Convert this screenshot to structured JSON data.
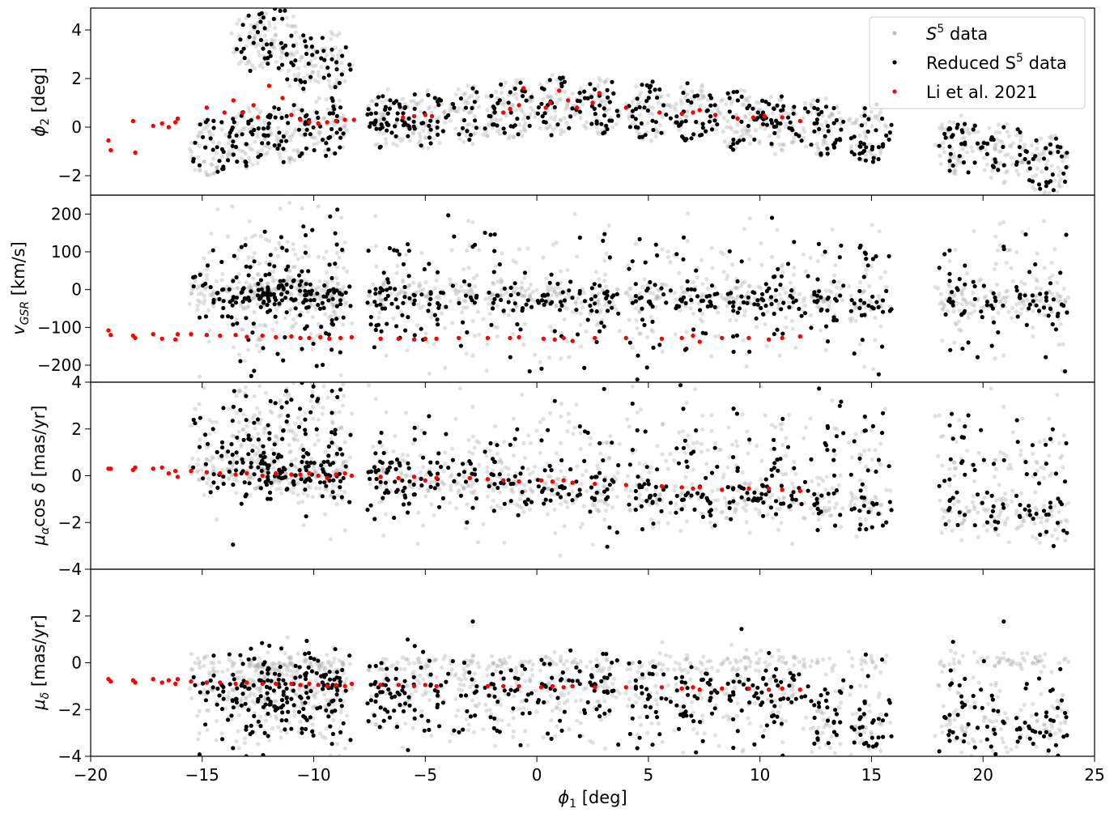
{
  "chart_data": {
    "type": "scatter",
    "xlabel": "ϕ1 [deg]",
    "xlim": [
      -20,
      25
    ],
    "xticks": [
      -20,
      -15,
      -10,
      -5,
      0,
      5,
      10,
      15,
      20,
      25
    ],
    "xtick_labels": [
      "−20",
      "−15",
      "−10",
      "−5",
      "0",
      "5",
      "10",
      "15",
      "20",
      "25"
    ],
    "legend": {
      "placement": "top-right",
      "entries": [
        {
          "label_base": "S",
          "label_sup": "5",
          "label_rest": " data",
          "color": "#bdbdbd"
        },
        {
          "label_base": "Reduced S",
          "label_sup": "5",
          "label_rest": " data",
          "color": "#000000"
        },
        {
          "label_base": "Li et al. 2021",
          "label_sup": "",
          "label_rest": "",
          "color": "#ff0000"
        }
      ]
    },
    "colors": {
      "s5": "#a8a8a8",
      "reduced": "#000000",
      "li": "#ff0000"
    },
    "panels": [
      {
        "id": "phi2",
        "ylabel": "ϕ2 [deg]",
        "ylim": [
          -2.8,
          4.9
        ],
        "yticks": [
          -2,
          0,
          2,
          4
        ],
        "ytick_labels": [
          "−2",
          "0",
          "2",
          "4"
        ],
        "li": [
          [
            -19.2,
            -0.55
          ],
          [
            -19.1,
            -0.95
          ],
          [
            -18.1,
            0.25
          ],
          [
            -18.0,
            -1.05
          ],
          [
            -17.2,
            0.05
          ],
          [
            -16.8,
            0.15
          ],
          [
            -16.5,
            0.0
          ],
          [
            -16.2,
            0.2
          ],
          [
            -16.1,
            0.35
          ],
          [
            -14.8,
            0.8
          ],
          [
            -14.0,
            0.6
          ],
          [
            -13.6,
            1.1
          ],
          [
            -13.2,
            0.6
          ],
          [
            -12.7,
            0.9
          ],
          [
            -12.5,
            0.4
          ],
          [
            -12.0,
            1.7
          ],
          [
            -11.4,
            1.2
          ],
          [
            -11.0,
            0.5
          ],
          [
            -10.6,
            0.3
          ],
          [
            -10.2,
            0.2
          ],
          [
            -9.8,
            0.15
          ],
          [
            -9.4,
            0.2
          ],
          [
            -9.0,
            0.25
          ],
          [
            -8.6,
            0.3
          ],
          [
            -8.2,
            0.3
          ],
          [
            -6.0,
            0.4
          ],
          [
            -5.5,
            0.45
          ],
          [
            -5.0,
            0.5
          ],
          [
            -4.7,
            0.45
          ],
          [
            -1.5,
            0.6
          ],
          [
            -1.2,
            0.75
          ],
          [
            -0.8,
            0.9
          ],
          [
            -0.6,
            1.6
          ],
          [
            0.4,
            0.8
          ],
          [
            0.6,
            1.0
          ],
          [
            1.0,
            1.5
          ],
          [
            1.4,
            1.1
          ],
          [
            1.8,
            0.8
          ],
          [
            2.5,
            1.0
          ],
          [
            2.8,
            1.4
          ],
          [
            4.0,
            0.8
          ],
          [
            5.5,
            0.6
          ],
          [
            6.5,
            0.55
          ],
          [
            7.0,
            0.6
          ],
          [
            7.3,
            0.7
          ],
          [
            8.0,
            0.5
          ],
          [
            9.0,
            0.35
          ],
          [
            9.7,
            0.4
          ],
          [
            10.2,
            0.45
          ],
          [
            11.0,
            0.4
          ],
          [
            11.8,
            0.25
          ]
        ]
      },
      {
        "id": "vgsr",
        "ylabel": "vGSR [km/s]",
        "ylim": [
          -245,
          250
        ],
        "yticks": [
          -200,
          -100,
          0,
          100,
          200
        ],
        "ytick_labels": [
          "−200",
          "−100",
          "0",
          "100",
          "200"
        ],
        "li": [
          [
            -19.2,
            -108
          ],
          [
            -19.1,
            -120
          ],
          [
            -18.1,
            -122
          ],
          [
            -18.0,
            -128
          ],
          [
            -17.2,
            -118
          ],
          [
            -16.8,
            -130
          ],
          [
            -16.2,
            -132
          ],
          [
            -16.1,
            -118
          ],
          [
            -15.5,
            -118
          ],
          [
            -14.8,
            -120
          ],
          [
            -14.2,
            -122
          ],
          [
            -13.5,
            -120
          ],
          [
            -13.0,
            -125
          ],
          [
            -12.3,
            -122
          ],
          [
            -11.7,
            -126
          ],
          [
            -11.0,
            -124
          ],
          [
            -10.6,
            -128
          ],
          [
            -10.2,
            -128
          ],
          [
            -9.7,
            -126
          ],
          [
            -9.3,
            -130
          ],
          [
            -8.8,
            -128
          ],
          [
            -8.3,
            -126
          ],
          [
            -7.0,
            -130
          ],
          [
            -6.2,
            -130
          ],
          [
            -5.5,
            -132
          ],
          [
            -5.0,
            -130
          ],
          [
            -4.5,
            -130
          ],
          [
            -3.5,
            -128
          ],
          [
            -2.2,
            -128
          ],
          [
            -1.2,
            -128
          ],
          [
            -0.8,
            -126
          ],
          [
            0.3,
            -130
          ],
          [
            0.8,
            -132
          ],
          [
            1.2,
            -128
          ],
          [
            1.6,
            -136
          ],
          [
            2.6,
            -128
          ],
          [
            4.0,
            -128
          ],
          [
            5.6,
            -130
          ],
          [
            6.5,
            -128
          ],
          [
            7.0,
            -122
          ],
          [
            7.3,
            -138
          ],
          [
            8.3,
            -128
          ],
          [
            9.5,
            -128
          ],
          [
            10.4,
            -132
          ],
          [
            11.0,
            -128
          ],
          [
            11.8,
            -124
          ]
        ]
      },
      {
        "id": "pmra",
        "ylabel": "μα cos δ [mas/yr]",
        "ylim": [
          -4,
          4
        ],
        "yticks": [
          -4,
          -2,
          0,
          2,
          4
        ],
        "ytick_labels": [
          "−4",
          "−2",
          "0",
          "2",
          "4"
        ],
        "li": [
          [
            -19.2,
            0.3
          ],
          [
            -19.1,
            0.3
          ],
          [
            -18.1,
            0.25
          ],
          [
            -18.0,
            0.35
          ],
          [
            -17.2,
            0.3
          ],
          [
            -16.8,
            0.35
          ],
          [
            -16.5,
            0.1
          ],
          [
            -16.2,
            0.2
          ],
          [
            -16.1,
            -0.05
          ],
          [
            -15.5,
            0.2
          ],
          [
            -14.8,
            0.15
          ],
          [
            -14.2,
            0.1
          ],
          [
            -13.5,
            0.05
          ],
          [
            -13.0,
            0.1
          ],
          [
            -12.3,
            0.0
          ],
          [
            -11.7,
            0.1
          ],
          [
            -11.0,
            0.05
          ],
          [
            -10.6,
            0.05
          ],
          [
            -10.2,
            0.1
          ],
          [
            -9.8,
            0.0
          ],
          [
            -9.4,
            -0.1
          ],
          [
            -9.0,
            0.05
          ],
          [
            -8.6,
            0.1
          ],
          [
            -8.3,
            0.0
          ],
          [
            -7.0,
            -0.05
          ],
          [
            -6.2,
            -0.1
          ],
          [
            -5.5,
            -0.05
          ],
          [
            -5.0,
            -0.2
          ],
          [
            -4.5,
            -0.1
          ],
          [
            -3.0,
            -0.1
          ],
          [
            -2.2,
            -0.15
          ],
          [
            -1.5,
            -0.2
          ],
          [
            -0.8,
            -0.25
          ],
          [
            0.2,
            -0.2
          ],
          [
            0.7,
            -0.25
          ],
          [
            1.2,
            -0.2
          ],
          [
            1.6,
            -0.3
          ],
          [
            2.6,
            -0.35
          ],
          [
            4.0,
            -0.4
          ],
          [
            5.6,
            -0.45
          ],
          [
            6.5,
            -0.5
          ],
          [
            7.0,
            -0.55
          ],
          [
            7.3,
            -0.5
          ],
          [
            8.3,
            -0.6
          ],
          [
            9.5,
            -0.55
          ],
          [
            10.4,
            -0.55
          ],
          [
            11.0,
            -0.6
          ],
          [
            11.8,
            -0.65
          ]
        ]
      },
      {
        "id": "pmdec",
        "ylabel": "μδ [mas/yr]",
        "ylim": [
          -4,
          4
        ],
        "yticks": [
          -4,
          -2,
          0,
          2
        ],
        "ytick_labels": [
          "−4",
          "−2",
          "0",
          "2"
        ],
        "li": [
          [
            -19.2,
            -0.7
          ],
          [
            -19.1,
            -0.8
          ],
          [
            -18.1,
            -0.75
          ],
          [
            -18.0,
            -0.85
          ],
          [
            -17.2,
            -0.7
          ],
          [
            -16.8,
            -0.85
          ],
          [
            -16.5,
            -0.75
          ],
          [
            -16.2,
            -0.9
          ],
          [
            -16.1,
            -0.7
          ],
          [
            -15.5,
            -0.8
          ],
          [
            -14.8,
            -0.85
          ],
          [
            -14.2,
            -0.85
          ],
          [
            -13.5,
            -0.9
          ],
          [
            -13.0,
            -0.85
          ],
          [
            -12.3,
            -0.9
          ],
          [
            -11.7,
            -0.9
          ],
          [
            -11.0,
            -0.9
          ],
          [
            -10.6,
            -0.95
          ],
          [
            -10.2,
            -0.9
          ],
          [
            -9.8,
            -0.95
          ],
          [
            -9.4,
            -1.0
          ],
          [
            -9.0,
            -0.95
          ],
          [
            -8.6,
            -1.0
          ],
          [
            -8.3,
            -0.9
          ],
          [
            -7.0,
            -0.95
          ],
          [
            -6.2,
            -0.95
          ],
          [
            -5.5,
            -1.0
          ],
          [
            -5.0,
            -0.95
          ],
          [
            -4.5,
            -1.0
          ],
          [
            -2.2,
            -1.0
          ],
          [
            -1.5,
            -1.0
          ],
          [
            -0.8,
            -1.0
          ],
          [
            0.2,
            -1.05
          ],
          [
            0.7,
            -1.0
          ],
          [
            1.2,
            -1.05
          ],
          [
            1.6,
            -1.0
          ],
          [
            2.6,
            -1.05
          ],
          [
            4.0,
            -1.05
          ],
          [
            5.6,
            -1.05
          ],
          [
            6.5,
            -1.1
          ],
          [
            7.0,
            -1.05
          ],
          [
            7.3,
            -1.15
          ],
          [
            8.3,
            -1.1
          ],
          [
            9.5,
            -1.1
          ],
          [
            10.4,
            -1.15
          ],
          [
            11.0,
            -1.1
          ],
          [
            11.8,
            -1.15
          ]
        ]
      }
    ]
  }
}
